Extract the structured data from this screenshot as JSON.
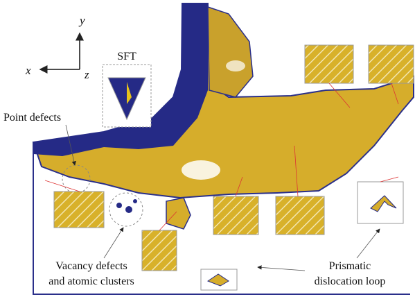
{
  "axes": {
    "y": "y",
    "x": "x",
    "z": "z"
  },
  "labels": {
    "sft": "SFT",
    "point_defects": "Point defects",
    "vacancy": [
      "Vacancy defects",
      "and atomic clusters"
    ],
    "prismatic": [
      "Prismatic",
      "dislocation loop"
    ]
  }
}
